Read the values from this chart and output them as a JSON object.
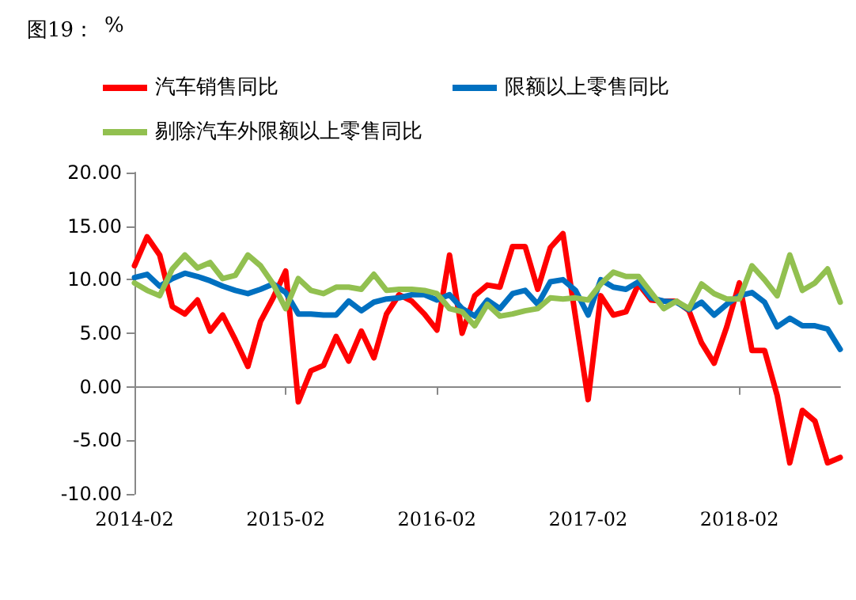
{
  "chart_data": {
    "type": "line",
    "title": "图19：",
    "annotations": [
      "%"
    ],
    "categories": [
      "2014-02",
      null,
      null,
      null,
      null,
      null,
      null,
      null,
      null,
      null,
      null,
      null,
      "2015-02",
      null,
      null,
      null,
      null,
      null,
      null,
      null,
      null,
      null,
      null,
      null,
      "2016-02",
      null,
      null,
      null,
      null,
      null,
      null,
      null,
      null,
      null,
      null,
      null,
      "2017-02",
      null,
      null,
      null,
      null,
      null,
      null,
      null,
      null,
      null,
      null,
      null,
      "2018-02",
      null,
      null,
      null,
      null,
      null,
      null,
      null,
      null
    ],
    "series": [
      {
        "name": "汽车销售同比",
        "color": "#ff0000",
        "values": [
          11.3,
          14.0,
          12.3,
          7.5,
          6.8,
          8.1,
          5.2,
          6.7,
          4.4,
          1.9,
          6.1,
          8.3,
          10.8,
          -1.4,
          1.5,
          2.0,
          4.7,
          2.4,
          5.2,
          2.7,
          6.8,
          8.6,
          8.0,
          6.8,
          5.3,
          12.3,
          5.0,
          8.5,
          9.5,
          9.3,
          13.1,
          13.1,
          9.1,
          13.0,
          14.3,
          6.5,
          -1.2,
          8.5,
          6.7,
          7.0,
          9.6,
          8.1,
          8.0,
          8.0,
          7.1,
          4.1,
          2.2,
          5.6,
          9.7,
          3.4,
          3.4,
          -0.8,
          -7.1,
          -2.2,
          -3.2,
          -7.1,
          -6.6
        ]
      },
      {
        "name": "限额以上零售同比",
        "color": "#0070c0",
        "values": [
          10.2,
          10.5,
          9.4,
          10.1,
          10.6,
          10.3,
          9.9,
          9.4,
          9.0,
          8.7,
          9.1,
          9.6,
          8.8,
          6.8,
          6.8,
          6.7,
          6.7,
          8.0,
          7.1,
          7.9,
          8.2,
          8.3,
          8.6,
          8.6,
          8.1,
          8.6,
          7.3,
          6.6,
          8.1,
          7.3,
          8.7,
          9.0,
          7.7,
          9.8,
          10.0,
          9.0,
          6.7,
          10.0,
          9.3,
          9.1,
          9.8,
          8.3,
          8.0,
          7.9,
          7.2,
          7.9,
          6.7,
          7.7,
          8.5,
          8.8,
          7.9,
          5.6,
          6.4,
          5.7,
          5.7,
          5.4,
          3.5
        ]
      },
      {
        "name": "剔除汽车外限额以上零售同比",
        "color": "#92c050",
        "values": [
          9.7,
          9.0,
          8.5,
          11.0,
          12.3,
          11.1,
          11.6,
          10.1,
          10.4,
          12.3,
          11.3,
          9.6,
          7.3,
          10.1,
          9.0,
          8.7,
          9.3,
          9.3,
          9.1,
          10.5,
          9.0,
          9.1,
          9.1,
          9.0,
          8.7,
          7.3,
          7.0,
          5.7,
          7.7,
          6.6,
          6.8,
          7.1,
          7.3,
          8.3,
          8.2,
          8.3,
          8.1,
          9.6,
          10.7,
          10.3,
          10.3,
          8.8,
          7.3,
          8.0,
          7.3,
          9.6,
          8.7,
          8.2,
          8.2,
          11.3,
          10.0,
          8.5,
          12.3,
          9.0,
          9.7,
          11.0,
          7.9
        ]
      }
    ],
    "ylim": [
      -10,
      20
    ],
    "yticks": [
      {
        "value": -10,
        "label": "-10.00"
      },
      {
        "value": -5,
        "label": "-5.00"
      },
      {
        "value": 0,
        "label": "0.00"
      },
      {
        "value": 5,
        "label": "5.00"
      },
      {
        "value": 10,
        "label": "10.00"
      },
      {
        "value": 15,
        "label": "15.00"
      },
      {
        "value": 20,
        "label": "20.00"
      }
    ],
    "legend": "top",
    "marker": "none",
    "line_style": "solid"
  }
}
